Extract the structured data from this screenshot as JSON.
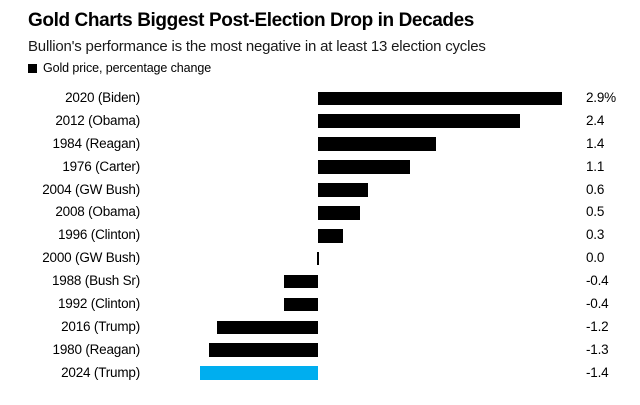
{
  "header": {
    "title": "Gold Charts Biggest Post-Election Drop in Decades",
    "subtitle": "Bullion's performance is the most negative in at least 13 election cycles"
  },
  "legend": {
    "label": "Gold price, percentage change",
    "swatch_color": "#000000"
  },
  "colors": {
    "bar_default": "#000000",
    "bar_highlight": "#00aeef",
    "background": "#ffffff",
    "text": "#000000"
  },
  "chart_data": {
    "type": "bar",
    "orientation": "horizontal",
    "title": "Gold Charts Biggest Post-Election Drop in Decades",
    "subtitle": "Bullion's performance is the most negative in at least 13 election cycles",
    "legend": [
      "Gold price, percentage change"
    ],
    "value_unit": "%",
    "xlim": [
      -1.4,
      2.9
    ],
    "grid": false,
    "zero_baseline": true,
    "rows": [
      {
        "label": "2020 (Biden)",
        "value": 2.9,
        "display_value": "2.9%",
        "highlighted": false
      },
      {
        "label": "2012 (Obama)",
        "value": 2.4,
        "display_value": "2.4",
        "highlighted": false
      },
      {
        "label": "1984 (Reagan)",
        "value": 1.4,
        "display_value": "1.4",
        "highlighted": false
      },
      {
        "label": "1976 (Carter)",
        "value": 1.1,
        "display_value": "1.1",
        "highlighted": false
      },
      {
        "label": "2004 (GW Bush)",
        "value": 0.6,
        "display_value": "0.6",
        "highlighted": false
      },
      {
        "label": "2008 (Obama)",
        "value": 0.5,
        "display_value": "0.5",
        "highlighted": false
      },
      {
        "label": "1996 (Clinton)",
        "value": 0.3,
        "display_value": "0.3",
        "highlighted": false
      },
      {
        "label": "2000 (GW Bush)",
        "value": 0.0,
        "display_value": "0.0",
        "highlighted": false
      },
      {
        "label": "1988 (Bush Sr)",
        "value": -0.4,
        "display_value": "-0.4",
        "highlighted": false
      },
      {
        "label": "1992 (Clinton)",
        "value": -0.4,
        "display_value": "-0.4",
        "highlighted": false
      },
      {
        "label": "2016 (Trump)",
        "value": -1.2,
        "display_value": "-1.2",
        "highlighted": false
      },
      {
        "label": "1980 (Reagan)",
        "value": -1.3,
        "display_value": "-1.3",
        "highlighted": false
      },
      {
        "label": "2024 (Trump)",
        "value": -1.4,
        "display_value": "-1.4",
        "highlighted": true
      }
    ]
  }
}
